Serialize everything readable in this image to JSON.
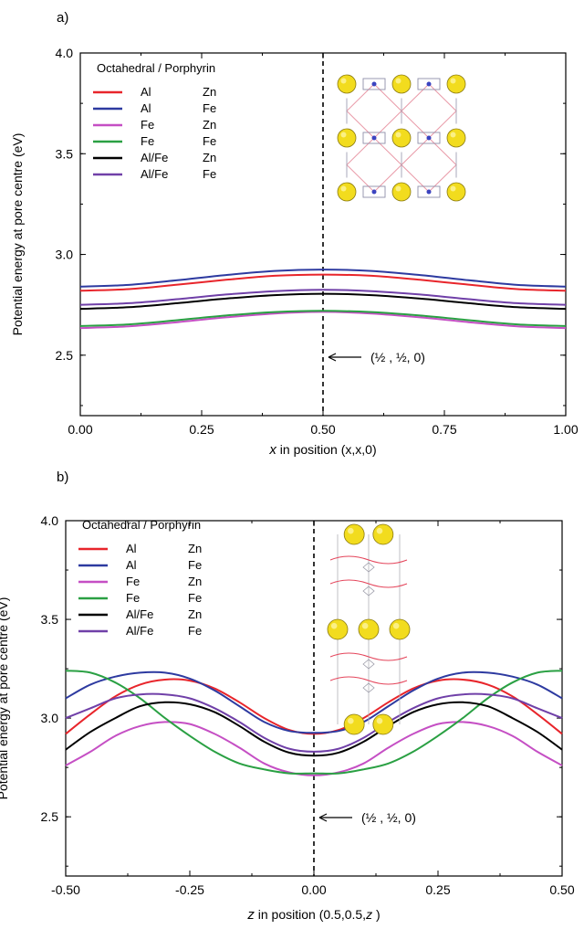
{
  "chart_data": [
    {
      "panel_label": "a)",
      "type": "line",
      "xlabel_italic": "x",
      "xlabel_rest": " in position (x,x,0)",
      "ylabel": "Potential energy at pore centre (eV)",
      "xlim": [
        0.0,
        1.0
      ],
      "ylim": [
        2.2,
        4.0
      ],
      "xticks": [
        "0.00",
        "0.25",
        "0.50",
        "0.75",
        "1.00"
      ],
      "xtick_values": [
        0.0,
        0.25,
        0.5,
        0.75,
        1.0
      ],
      "yticks": [
        "2.5",
        "3.0",
        "3.5",
        "4.0"
      ],
      "ytick_values": [
        2.5,
        3.0,
        3.5,
        4.0
      ],
      "legend_title": "Octahedral / Porphyrin",
      "vline_x": 0.5,
      "annotation": "(½ , ½, 0)",
      "annotation_arrow": "←",
      "x": [
        0.0,
        0.1,
        0.2,
        0.3,
        0.4,
        0.5,
        0.6,
        0.7,
        0.8,
        0.9,
        1.0
      ],
      "series": [
        {
          "name": "Al",
          "porphyrin": "Zn",
          "color": "#e8252b",
          "values": [
            2.82,
            2.828,
            2.85,
            2.874,
            2.894,
            2.9,
            2.894,
            2.874,
            2.85,
            2.828,
            2.82
          ]
        },
        {
          "name": "Al",
          "porphyrin": "Fe",
          "color": "#2d3aa0",
          "values": [
            2.84,
            2.849,
            2.872,
            2.898,
            2.918,
            2.925,
            2.918,
            2.898,
            2.872,
            2.849,
            2.84
          ]
        },
        {
          "name": "Fe",
          "porphyrin": "Zn",
          "color": "#c54fc4",
          "values": [
            2.635,
            2.643,
            2.664,
            2.688,
            2.707,
            2.715,
            2.707,
            2.688,
            2.664,
            2.643,
            2.635
          ]
        },
        {
          "name": "Fe",
          "porphyrin": "Fe",
          "color": "#2aa043",
          "values": [
            2.645,
            2.653,
            2.674,
            2.697,
            2.714,
            2.72,
            2.714,
            2.697,
            2.674,
            2.653,
            2.645
          ]
        },
        {
          "name": "Al/Fe",
          "porphyrin": "Zn",
          "color": "#000000",
          "values": [
            2.73,
            2.738,
            2.758,
            2.781,
            2.798,
            2.805,
            2.798,
            2.781,
            2.758,
            2.738,
            2.73
          ]
        },
        {
          "name": "Al/Fe",
          "porphyrin": "Fe",
          "color": "#7040a8",
          "values": [
            2.75,
            2.758,
            2.778,
            2.801,
            2.818,
            2.825,
            2.818,
            2.801,
            2.778,
            2.758,
            2.75
          ]
        }
      ]
    },
    {
      "panel_label": "b)",
      "type": "line",
      "xlabel_italic": "z",
      "xlabel_pre": " in position (0.5,0.5,",
      "xlabel_post": " )",
      "ylabel": "Potential energy at pore centre (eV)",
      "xlim": [
        -0.5,
        0.5
      ],
      "ylim": [
        2.2,
        4.0
      ],
      "xticks": [
        "-0.50",
        "-0.25",
        "0.00",
        "0.25",
        "0.50"
      ],
      "xtick_values": [
        -0.5,
        -0.25,
        0.0,
        0.25,
        0.5
      ],
      "yticks": [
        "2.5",
        "3.0",
        "3.5",
        "4.0"
      ],
      "ytick_values": [
        2.5,
        3.0,
        3.5,
        4.0
      ],
      "legend_title": "Octahedral / Porphyrin",
      "vline_x": 0.0,
      "annotation": "(½ , ½, 0)",
      "annotation_arrow": "←",
      "x": [
        -0.5,
        -0.45,
        -0.4,
        -0.35,
        -0.3,
        -0.25,
        -0.2,
        -0.15,
        -0.1,
        -0.05,
        0.0,
        0.05,
        0.1,
        0.15,
        0.2,
        0.25,
        0.3,
        0.35,
        0.4,
        0.45,
        0.5
      ],
      "series": [
        {
          "name": "Al",
          "porphyrin": "Zn",
          "color": "#e8252b",
          "values": [
            2.92,
            3.02,
            3.11,
            3.17,
            3.195,
            3.19,
            3.15,
            3.08,
            3.0,
            2.94,
            2.92,
            2.94,
            3.0,
            3.08,
            3.15,
            3.19,
            3.195,
            3.17,
            3.11,
            3.02,
            2.92
          ]
        },
        {
          "name": "Al",
          "porphyrin": "Fe",
          "color": "#2d3aa0",
          "values": [
            3.1,
            3.17,
            3.21,
            3.23,
            3.23,
            3.2,
            3.14,
            3.06,
            2.98,
            2.935,
            2.925,
            2.935,
            2.98,
            3.06,
            3.14,
            3.2,
            3.23,
            3.23,
            3.21,
            3.17,
            3.1
          ]
        },
        {
          "name": "Fe",
          "porphyrin": "Zn",
          "color": "#c54fc4",
          "values": [
            2.76,
            2.83,
            2.91,
            2.96,
            2.98,
            2.97,
            2.92,
            2.85,
            2.77,
            2.725,
            2.71,
            2.725,
            2.77,
            2.85,
            2.92,
            2.97,
            2.98,
            2.96,
            2.91,
            2.83,
            2.76
          ]
        },
        {
          "name": "Fe",
          "porphyrin": "Fe",
          "color": "#2aa043",
          "values": [
            3.24,
            3.23,
            3.18,
            3.1,
            3.0,
            2.91,
            2.83,
            2.77,
            2.74,
            2.72,
            2.72,
            2.72,
            2.74,
            2.77,
            2.83,
            2.91,
            3.0,
            3.1,
            3.18,
            3.23,
            3.24
          ]
        },
        {
          "name": "Al/Fe",
          "porphyrin": "Zn",
          "color": "#000000",
          "values": [
            2.84,
            2.93,
            3.0,
            3.06,
            3.08,
            3.07,
            3.03,
            2.96,
            2.88,
            2.825,
            2.81,
            2.825,
            2.88,
            2.96,
            3.03,
            3.07,
            3.08,
            3.06,
            3.0,
            2.93,
            2.84
          ]
        },
        {
          "name": "Al/Fe",
          "porphyrin": "Fe",
          "color": "#7040a8",
          "values": [
            3.0,
            3.05,
            3.1,
            3.12,
            3.12,
            3.1,
            3.05,
            2.98,
            2.9,
            2.845,
            2.83,
            2.845,
            2.9,
            2.98,
            3.05,
            3.1,
            3.12,
            3.12,
            3.1,
            3.05,
            3.0
          ]
        }
      ]
    }
  ]
}
